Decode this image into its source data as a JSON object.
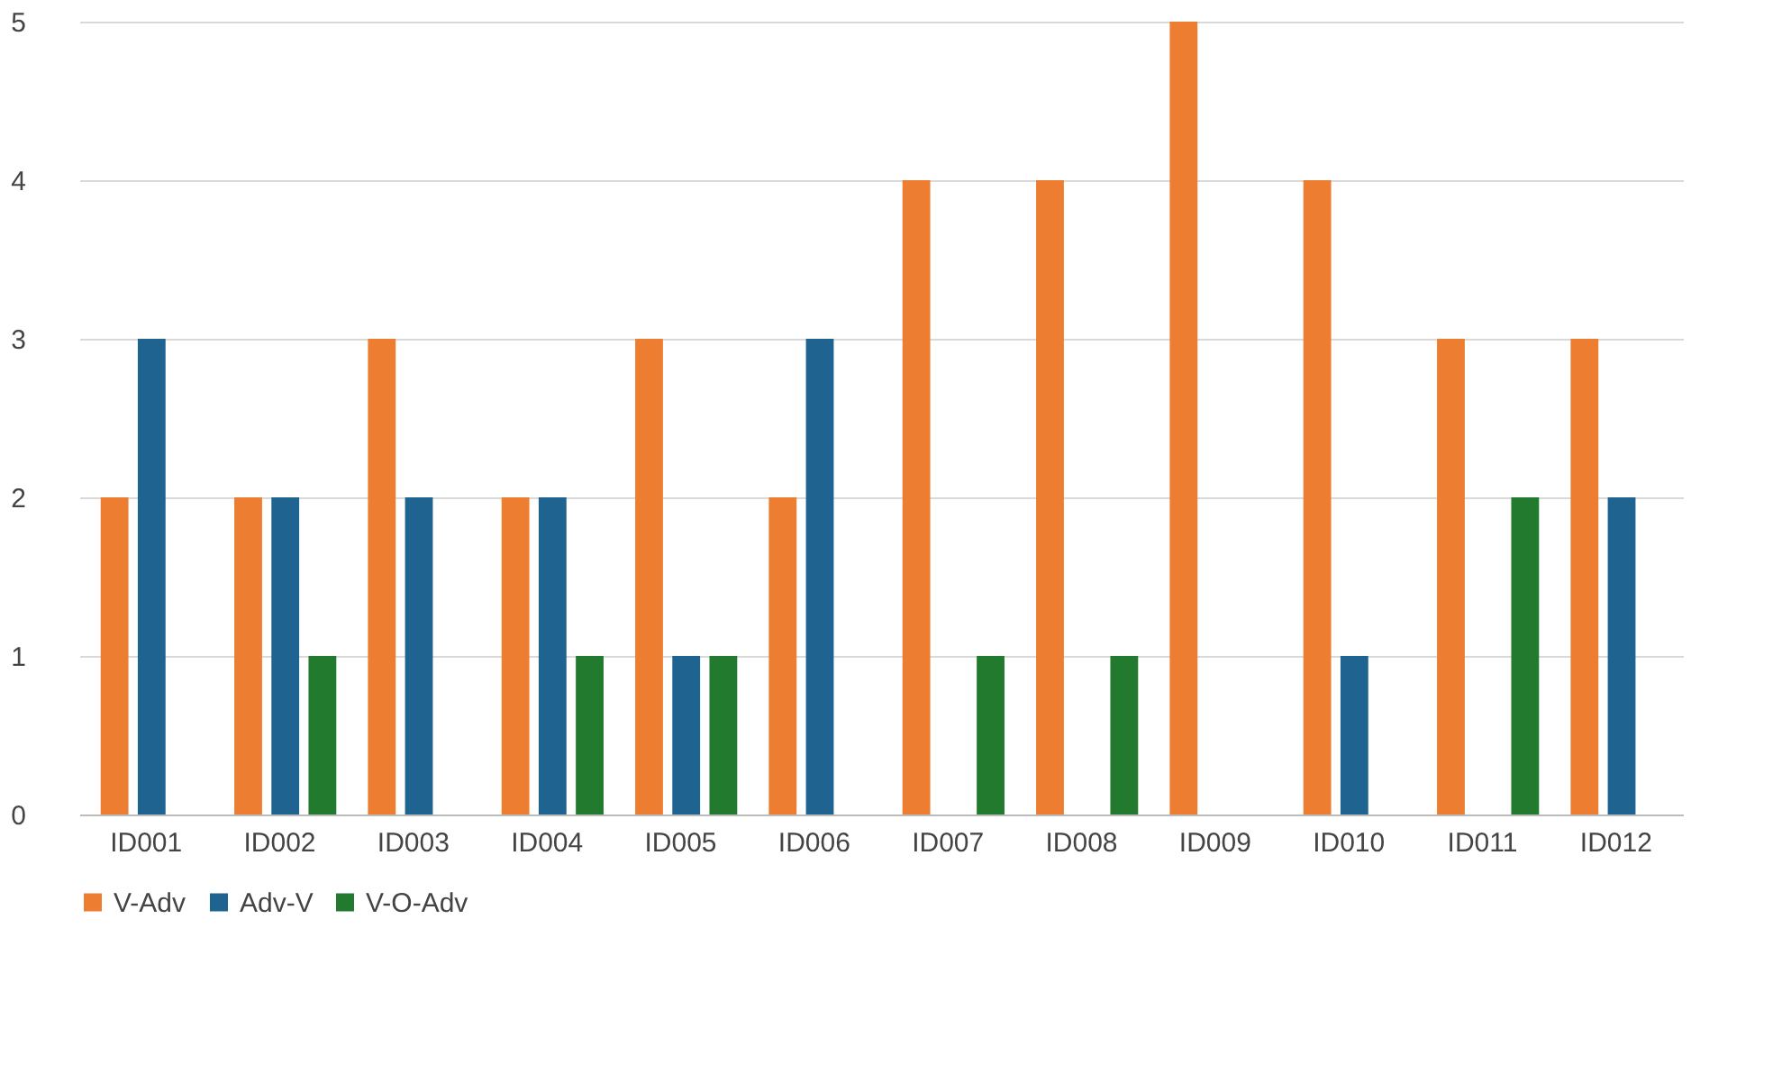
{
  "chart_data": {
    "type": "bar",
    "categories": [
      "ID001",
      "ID002",
      "ID003",
      "ID004",
      "ID005",
      "ID006",
      "ID007",
      "ID008",
      "ID009",
      "ID010",
      "ID011",
      "ID012"
    ],
    "series": [
      {
        "name": "V-Adv",
        "color": "#ed7d31",
        "values": [
          2,
          2,
          3,
          2,
          3,
          2,
          4,
          4,
          5,
          4,
          3,
          3
        ]
      },
      {
        "name": "Adv-V",
        "color": "#1f6391",
        "values": [
          3,
          2,
          2,
          2,
          1,
          3,
          0,
          0,
          0,
          1,
          0,
          2
        ]
      },
      {
        "name": "V-O-Adv",
        "color": "#217a2e",
        "values": [
          0,
          1,
          0,
          1,
          1,
          0,
          1,
          1,
          0,
          0,
          2,
          0
        ]
      }
    ],
    "ylim": [
      0,
      5
    ],
    "yticks": [
      0,
      1,
      2,
      3,
      4,
      5
    ],
    "grid": "y",
    "legend": "bottom"
  }
}
